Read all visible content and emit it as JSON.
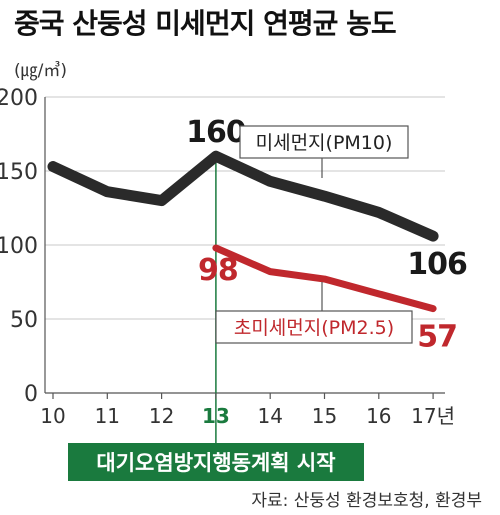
{
  "header": {
    "title": "중국 산둥성 미세먼지 연평균 농도",
    "unit": "(㎍/㎥)"
  },
  "banner": {
    "text": "대기오염방지행동계획 시작",
    "color": "#1a7a3e"
  },
  "source": "자료: 산둥성 환경보호청, 환경부",
  "colors": {
    "pm10": "#2a2a2a",
    "pm25": "#c0282d",
    "highlight": "#1a7a3e"
  },
  "chart_data": {
    "type": "line",
    "title": "중국 산둥성 미세먼지 연평균 농도",
    "ylabel": "(㎍/㎥)",
    "xlabel": "",
    "ylim": [
      0,
      200
    ],
    "yticks": [
      0,
      50,
      100,
      150,
      200
    ],
    "categories": [
      "10",
      "11",
      "12",
      "13",
      "14",
      "15",
      "16",
      "17년"
    ],
    "highlight_category": "13",
    "grid": true,
    "series": [
      {
        "name": "미세먼지(PM10)",
        "x": [
          "10",
          "11",
          "12",
          "13",
          "14",
          "15",
          "16",
          "17년"
        ],
        "values": [
          153,
          136,
          130,
          160,
          143,
          133,
          122,
          106
        ]
      },
      {
        "name": "초미세먼지(PM2.5)",
        "x": [
          "13",
          "14",
          "15",
          "16",
          "17년"
        ],
        "values": [
          98,
          82,
          77,
          67,
          57
        ]
      }
    ],
    "annotations": [
      {
        "series": "미세먼지(PM10)",
        "category": "13",
        "label": "160"
      },
      {
        "series": "미세먼지(PM10)",
        "category": "17년",
        "label": "106"
      },
      {
        "series": "초미세먼지(PM2.5)",
        "category": "13",
        "label": "98"
      },
      {
        "series": "초미세먼지(PM2.5)",
        "category": "17년",
        "label": "57"
      }
    ]
  }
}
